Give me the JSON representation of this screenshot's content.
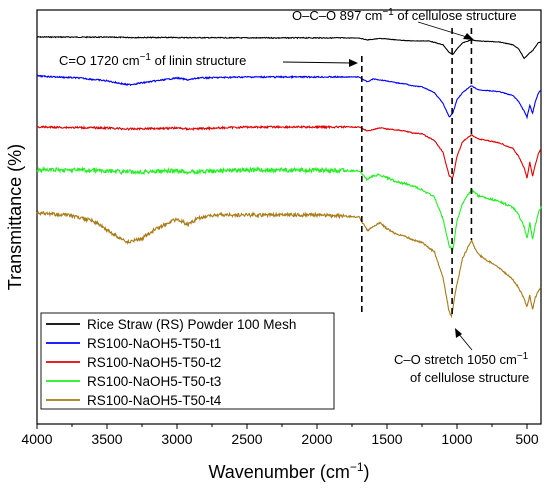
{
  "chart_data": {
    "type": "line",
    "title": "",
    "xlabel": "Wavenumber (cm",
    "xlabel_sup": "−1",
    "xlabel_suffix": ")",
    "ylabel": "Transmittance (%)",
    "xlim": [
      4000,
      400
    ],
    "x_reversed": true,
    "xticks": [
      4000,
      3500,
      3000,
      2500,
      2000,
      1500,
      1000,
      500
    ],
    "y_ticks_shown": false,
    "grid": false,
    "legend_position": "bottom-left",
    "series": [
      {
        "name": "Rice Straw (RS) Powder 100 Mesh",
        "color": "#000000",
        "noise": 0.4,
        "points": [
          [
            4000,
            0
          ],
          [
            3500,
            0.2
          ],
          [
            3300,
            0.5
          ],
          [
            3000,
            0.6
          ],
          [
            2500,
            0.9
          ],
          [
            2000,
            0.9
          ],
          [
            1700,
            1
          ],
          [
            1640,
            3
          ],
          [
            1550,
            1.5
          ],
          [
            1500,
            2
          ],
          [
            1430,
            3
          ],
          [
            1320,
            4
          ],
          [
            1200,
            4
          ],
          [
            1100,
            8
          ],
          [
            1055,
            16
          ],
          [
            1030,
            18
          ],
          [
            1000,
            12
          ],
          [
            960,
            6
          ],
          [
            898,
            3
          ],
          [
            850,
            4
          ],
          [
            700,
            5
          ],
          [
            600,
            8
          ],
          [
            560,
            12
          ],
          [
            520,
            22
          ],
          [
            480,
            16
          ],
          [
            460,
            14
          ],
          [
            420,
            6
          ],
          [
            400,
            5
          ]
        ]
      },
      {
        "name": "RS100-NaOH5-T50-t1",
        "color": "#0000ff",
        "noise": 0.6,
        "points": [
          [
            4000,
            0
          ],
          [
            3700,
            2
          ],
          [
            3500,
            5
          ],
          [
            3350,
            9
          ],
          [
            3200,
            6
          ],
          [
            3000,
            2
          ],
          [
            2920,
            4
          ],
          [
            2850,
            2
          ],
          [
            2500,
            1
          ],
          [
            2000,
            1
          ],
          [
            1700,
            1
          ],
          [
            1640,
            6
          ],
          [
            1600,
            3
          ],
          [
            1550,
            4
          ],
          [
            1500,
            5
          ],
          [
            1430,
            7
          ],
          [
            1370,
            8
          ],
          [
            1320,
            10
          ],
          [
            1250,
            11
          ],
          [
            1160,
            17
          ],
          [
            1100,
            28
          ],
          [
            1055,
            42
          ],
          [
            1030,
            38
          ],
          [
            1000,
            24
          ],
          [
            960,
            17
          ],
          [
            898,
            10
          ],
          [
            850,
            14
          ],
          [
            700,
            16
          ],
          [
            600,
            20
          ],
          [
            560,
            26
          ],
          [
            520,
            36
          ],
          [
            500,
            42
          ],
          [
            480,
            30
          ],
          [
            460,
            38
          ],
          [
            440,
            26
          ],
          [
            420,
            18
          ],
          [
            400,
            14
          ]
        ]
      },
      {
        "name": "RS100-NaOH5-T50-t2",
        "color": "#e00000",
        "noise": 0.8,
        "points": [
          [
            4000,
            0
          ],
          [
            3500,
            1
          ],
          [
            3350,
            2
          ],
          [
            3000,
            1
          ],
          [
            2920,
            2
          ],
          [
            2500,
            0
          ],
          [
            2000,
            0
          ],
          [
            1700,
            0
          ],
          [
            1640,
            4
          ],
          [
            1550,
            1
          ],
          [
            1500,
            2
          ],
          [
            1430,
            3
          ],
          [
            1370,
            4
          ],
          [
            1320,
            6
          ],
          [
            1250,
            7
          ],
          [
            1160,
            14
          ],
          [
            1100,
            26
          ],
          [
            1055,
            50
          ],
          [
            1030,
            52
          ],
          [
            1000,
            30
          ],
          [
            960,
            15
          ],
          [
            898,
            8
          ],
          [
            850,
            12
          ],
          [
            700,
            16
          ],
          [
            600,
            22
          ],
          [
            560,
            30
          ],
          [
            520,
            42
          ],
          [
            500,
            52
          ],
          [
            480,
            36
          ],
          [
            460,
            50
          ],
          [
            440,
            38
          ],
          [
            420,
            28
          ],
          [
            400,
            22
          ]
        ]
      },
      {
        "name": "RS100-NaOH5-T50-t3",
        "color": "#22ee22",
        "noise": 1.8,
        "points": [
          [
            4000,
            0
          ],
          [
            3700,
            0
          ],
          [
            3500,
            1
          ],
          [
            3350,
            2
          ],
          [
            3000,
            1
          ],
          [
            2920,
            2
          ],
          [
            2500,
            0
          ],
          [
            2000,
            0
          ],
          [
            1700,
            1
          ],
          [
            1640,
            10
          ],
          [
            1600,
            6
          ],
          [
            1550,
            5
          ],
          [
            1500,
            8
          ],
          [
            1430,
            12
          ],
          [
            1370,
            14
          ],
          [
            1320,
            16
          ],
          [
            1250,
            20
          ],
          [
            1160,
            28
          ],
          [
            1100,
            50
          ],
          [
            1055,
            78
          ],
          [
            1030,
            82
          ],
          [
            1000,
            52
          ],
          [
            960,
            34
          ],
          [
            898,
            20
          ],
          [
            850,
            26
          ],
          [
            700,
            32
          ],
          [
            600,
            38
          ],
          [
            560,
            46
          ],
          [
            520,
            58
          ],
          [
            500,
            70
          ],
          [
            480,
            54
          ],
          [
            460,
            70
          ],
          [
            440,
            56
          ],
          [
            420,
            44
          ],
          [
            400,
            38
          ]
        ]
      },
      {
        "name": "RS100-NaOH5-T50-t4",
        "color": "#a87a18",
        "noise": 1.5,
        "points": [
          [
            4000,
            0
          ],
          [
            3800,
            2
          ],
          [
            3600,
            8
          ],
          [
            3450,
            22
          ],
          [
            3350,
            30
          ],
          [
            3250,
            26
          ],
          [
            3150,
            16
          ],
          [
            3000,
            6
          ],
          [
            2920,
            12
          ],
          [
            2850,
            5
          ],
          [
            2700,
            2
          ],
          [
            2500,
            2
          ],
          [
            2000,
            2
          ],
          [
            1700,
            4
          ],
          [
            1640,
            18
          ],
          [
            1600,
            14
          ],
          [
            1550,
            10
          ],
          [
            1500,
            16
          ],
          [
            1430,
            22
          ],
          [
            1370,
            24
          ],
          [
            1320,
            27
          ],
          [
            1250,
            30
          ],
          [
            1160,
            40
          ],
          [
            1100,
            66
          ],
          [
            1060,
            98
          ],
          [
            1040,
            106
          ],
          [
            1010,
            80
          ],
          [
            960,
            46
          ],
          [
            898,
            28
          ],
          [
            850,
            42
          ],
          [
            700,
            56
          ],
          [
            600,
            68
          ],
          [
            560,
            76
          ],
          [
            520,
            88
          ],
          [
            500,
            96
          ],
          [
            480,
            84
          ],
          [
            460,
            98
          ],
          [
            440,
            86
          ],
          [
            420,
            80
          ],
          [
            400,
            76
          ]
        ]
      }
    ],
    "annotations": [
      {
        "id": "co-897",
        "text": "O–C–O 897 cm",
        "sup": "−1",
        "suffix": " of cellulose structure",
        "x_line": 897
      },
      {
        "id": "c-o-1720",
        "text": "C=O 1720 cm",
        "sup": "−1",
        "suffix": " of linin structure",
        "x_line": 1680
      },
      {
        "id": "c-o-1050",
        "text": "C–O stretch 1050 cm",
        "sup": "−1",
        "suffix": "",
        "line2": "of cellulose structure",
        "x_line": 1035
      }
    ]
  }
}
